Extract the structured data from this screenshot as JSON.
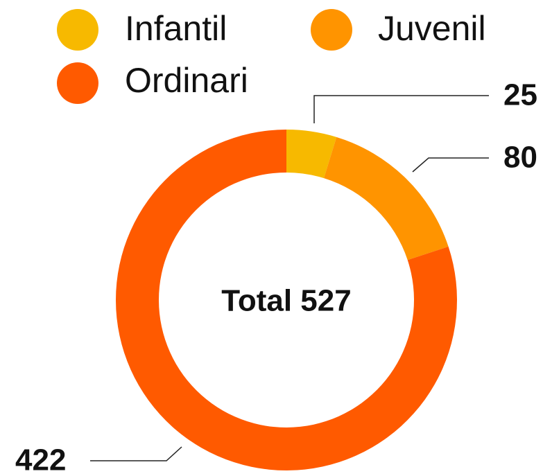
{
  "chart_data": {
    "type": "donut",
    "categories": [
      "Infantil",
      "Juvenil",
      "Ordinari"
    ],
    "values": [
      25,
      80,
      422
    ],
    "colors": [
      "#f7b900",
      "#ff9400",
      "#ff5a00"
    ],
    "center_label": "Total 527",
    "legend": "top"
  }
}
